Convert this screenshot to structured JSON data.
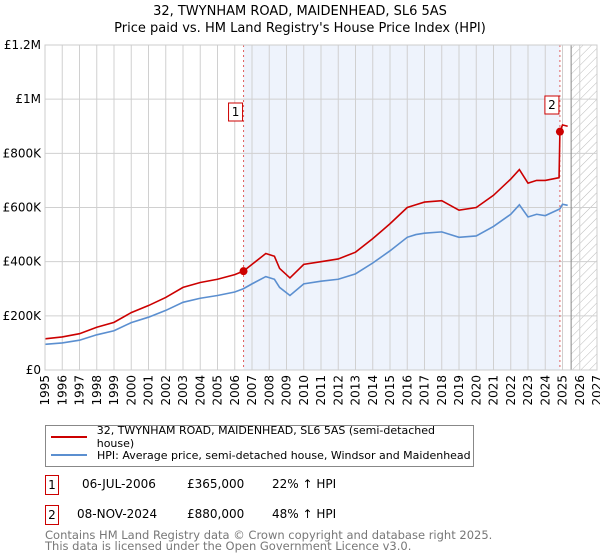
{
  "chart_data": {
    "type": "line",
    "title": "32, TWYNHAM ROAD, MAIDENHEAD, SL6 5AS",
    "subtitle": "Price paid vs. HM Land Registry's House Price Index (HPI)",
    "xlim": [
      1995,
      2027
    ],
    "ylim": [
      0,
      1200000
    ],
    "x_ticks": [
      "1995",
      "1996",
      "1997",
      "1998",
      "1999",
      "2000",
      "2001",
      "2002",
      "2003",
      "2004",
      "2005",
      "2006",
      "2007",
      "2008",
      "2009",
      "2010",
      "2011",
      "2012",
      "2013",
      "2014",
      "2015",
      "2016",
      "2017",
      "2018",
      "2019",
      "2020",
      "2021",
      "2022",
      "2023",
      "2024",
      "2025",
      "2026",
      "2027"
    ],
    "y_ticks": [
      {
        "v": 0,
        "label": "£0"
      },
      {
        "v": 200000,
        "label": "£200K"
      },
      {
        "v": 400000,
        "label": "£400K"
      },
      {
        "v": 600000,
        "label": "£600K"
      },
      {
        "v": 800000,
        "label": "£800K"
      },
      {
        "v": 1000000,
        "label": "£1M"
      },
      {
        "v": 1200000,
        "label": "£1.2M"
      }
    ],
    "grid": true,
    "series": [
      {
        "name": "32, TWYNHAM ROAD, MAIDENHEAD, SL6 5AS (semi-detached house)",
        "color": "#cc0000",
        "x": [
          1995,
          1996,
          1997,
          1998,
          1999,
          2000,
          2001,
          2002,
          2003,
          2004,
          2005,
          2006,
          2006.5,
          2007,
          2007.8,
          2008.3,
          2008.6,
          2009.2,
          2010,
          2011,
          2012,
          2013,
          2014,
          2015,
          2016,
          2016.5,
          2017,
          2018,
          2019,
          2020,
          2021,
          2022,
          2022.5,
          2023,
          2023.5,
          2024,
          2024.8,
          2024.85,
          2025,
          2025.3
        ],
        "y": [
          115000,
          122000,
          134000,
          158000,
          176000,
          212000,
          238000,
          268000,
          305000,
          323000,
          335000,
          352000,
          365000,
          390000,
          430000,
          420000,
          375000,
          340000,
          390000,
          400000,
          410000,
          435000,
          485000,
          540000,
          600000,
          610000,
          620000,
          625000,
          590000,
          600000,
          645000,
          705000,
          740000,
          690000,
          700000,
          700000,
          710000,
          880000,
          905000,
          900000
        ]
      },
      {
        "name": "HPI: Average price, semi-detached house, Windsor and Maidenhead",
        "color": "#5b8fd0",
        "x": [
          1995,
          1996,
          1997,
          1998,
          1999,
          2000,
          2001,
          2002,
          2003,
          2004,
          2005,
          2006,
          2006.5,
          2007,
          2007.8,
          2008.3,
          2008.6,
          2009.2,
          2010,
          2011,
          2012,
          2013,
          2014,
          2015,
          2016,
          2016.5,
          2017,
          2018,
          2019,
          2020,
          2021,
          2022,
          2022.5,
          2023,
          2023.5,
          2024,
          2024.85,
          2025,
          2025.3
        ],
        "y": [
          95000,
          100000,
          110000,
          130000,
          145000,
          175000,
          195000,
          220000,
          250000,
          265000,
          275000,
          288000,
          300000,
          318000,
          345000,
          335000,
          305000,
          275000,
          318000,
          328000,
          335000,
          355000,
          395000,
          440000,
          490000,
          500000,
          505000,
          510000,
          490000,
          495000,
          530000,
          575000,
          610000,
          565000,
          575000,
          570000,
          595000,
          612000,
          608000
        ]
      }
    ],
    "annotations": [
      {
        "label": "1",
        "x": 2006.51
      },
      {
        "label": "2",
        "x": 2024.85
      }
    ],
    "sales": [
      {
        "label": "1",
        "date": "06-JUL-2006",
        "price": "£365,000",
        "hpi": "22% ↑ HPI",
        "x": 2006.51,
        "y": 365000
      },
      {
        "label": "2",
        "date": "08-NOV-2024",
        "price": "£880,000",
        "hpi": "48% ↑ HPI",
        "x": 2024.85,
        "y": 880000
      }
    ],
    "hatch_from": 2025.5
  },
  "footer": [
    "Contains HM Land Registry data © Crown copyright and database right 2025.",
    "This data is licensed under the Open Government Licence v3.0."
  ]
}
